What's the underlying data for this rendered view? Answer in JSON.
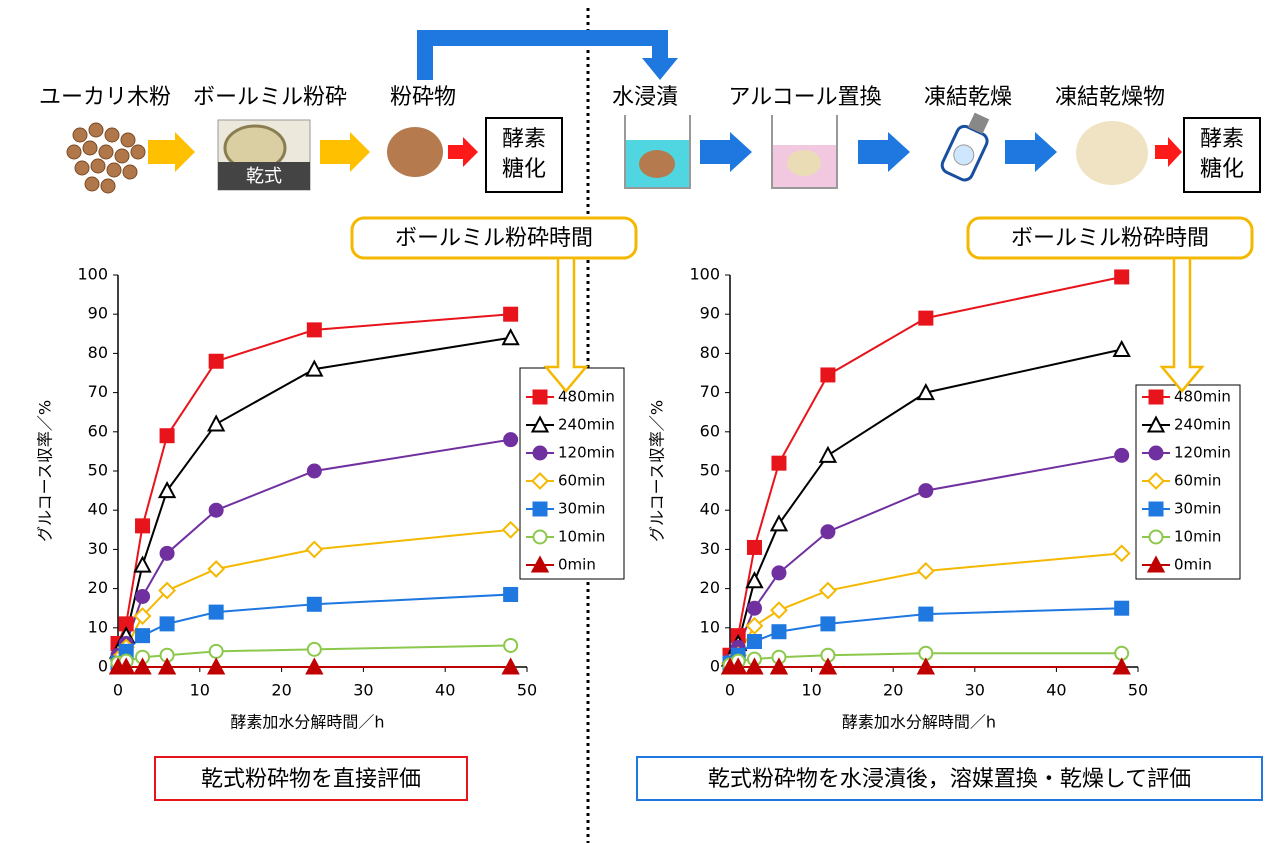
{
  "diagram": {
    "steps": [
      "ユーカリ木粉",
      "ボールミル粉砕",
      "粉砕物",
      "水浸漬",
      "アルコール置換",
      "凍結乾燥",
      "凍結乾燥物"
    ],
    "mill_label": "乾式",
    "box_lines": [
      "酵素",
      "糖化"
    ]
  },
  "chart_data": [
    {
      "type": "line",
      "annotation": "ボールミル粉砕時間",
      "caption": "乾式粉砕物を直接評価",
      "caption_color": "#e8141c",
      "xlabel": "酵素加水分解時間／h",
      "ylabel": "グルコース収率／%",
      "x": [
        0,
        1,
        3,
        6,
        12,
        24,
        48
      ],
      "xlim": [
        0,
        50
      ],
      "xticks": [
        0,
        10,
        20,
        30,
        40,
        50
      ],
      "ylim": [
        0,
        100
      ],
      "yticks": [
        0,
        10,
        20,
        30,
        40,
        50,
        60,
        70,
        80,
        90,
        100
      ],
      "grid": false,
      "series": [
        {
          "name": "480min",
          "color": "#e8141c",
          "marker": "square",
          "filled": true,
          "values": [
            6,
            11,
            36,
            59,
            78,
            86,
            90
          ]
        },
        {
          "name": "240min",
          "color": "#000000",
          "marker": "triangle",
          "filled": false,
          "values": [
            4,
            8,
            26,
            45,
            62,
            76,
            84
          ]
        },
        {
          "name": "120min",
          "color": "#7030a0",
          "marker": "circle",
          "filled": true,
          "values": [
            3,
            6,
            18,
            29,
            40,
            50,
            58
          ]
        },
        {
          "name": "60min",
          "color": "#f5b800",
          "marker": "diamond",
          "filled": false,
          "values": [
            2,
            5,
            13,
            19.5,
            25,
            30,
            35
          ]
        },
        {
          "name": "30min",
          "color": "#1e78e0",
          "marker": "square",
          "filled": true,
          "values": [
            1,
            4,
            8,
            11,
            14,
            16,
            18.5
          ]
        },
        {
          "name": "10min",
          "color": "#8cc84b",
          "marker": "circle",
          "filled": false,
          "values": [
            1,
            1.5,
            2.5,
            3,
            4,
            4.5,
            5.5
          ]
        },
        {
          "name": "0min",
          "color": "#c00000",
          "marker": "triangle",
          "filled": true,
          "values": [
            0,
            0,
            0,
            0,
            0,
            0,
            0
          ]
        }
      ]
    },
    {
      "type": "line",
      "annotation": "ボールミル粉砕時間",
      "caption": "乾式粉砕物を水浸漬後，溶媒置換・乾燥して評価",
      "caption_color": "#1e78e0",
      "xlabel": "酵素加水分解時間／h",
      "ylabel": "グルコース収率／%",
      "x": [
        0,
        1,
        3,
        6,
        12,
        24,
        48
      ],
      "xlim": [
        0,
        50
      ],
      "xticks": [
        0,
        10,
        20,
        30,
        40,
        50
      ],
      "ylim": [
        0,
        100
      ],
      "yticks": [
        0,
        10,
        20,
        30,
        40,
        50,
        60,
        70,
        80,
        90,
        100
      ],
      "grid": false,
      "series": [
        {
          "name": "480min",
          "color": "#e8141c",
          "marker": "square",
          "filled": true,
          "values": [
            3,
            8,
            30.5,
            52,
            74.5,
            89,
            99.5
          ]
        },
        {
          "name": "240min",
          "color": "#000000",
          "marker": "triangle",
          "filled": false,
          "values": [
            2,
            6,
            22,
            36.5,
            54,
            70,
            81
          ]
        },
        {
          "name": "120min",
          "color": "#7030a0",
          "marker": "circle",
          "filled": true,
          "values": [
            1.5,
            5,
            15,
            24,
            34.5,
            45,
            54
          ]
        },
        {
          "name": "60min",
          "color": "#f5b800",
          "marker": "diamond",
          "filled": false,
          "values": [
            1,
            3,
            10.5,
            14.5,
            19.5,
            24.5,
            29
          ]
        },
        {
          "name": "30min",
          "color": "#1e78e0",
          "marker": "square",
          "filled": true,
          "values": [
            1,
            3,
            6.5,
            9,
            11,
            13.5,
            15
          ]
        },
        {
          "name": "10min",
          "color": "#8cc84b",
          "marker": "circle",
          "filled": false,
          "values": [
            0.5,
            1.5,
            2,
            2.5,
            3,
            3.5,
            3.5
          ]
        },
        {
          "name": "0min",
          "color": "#c00000",
          "marker": "triangle",
          "filled": true,
          "values": [
            0,
            0,
            0,
            0,
            0,
            0,
            0
          ]
        }
      ]
    }
  ]
}
